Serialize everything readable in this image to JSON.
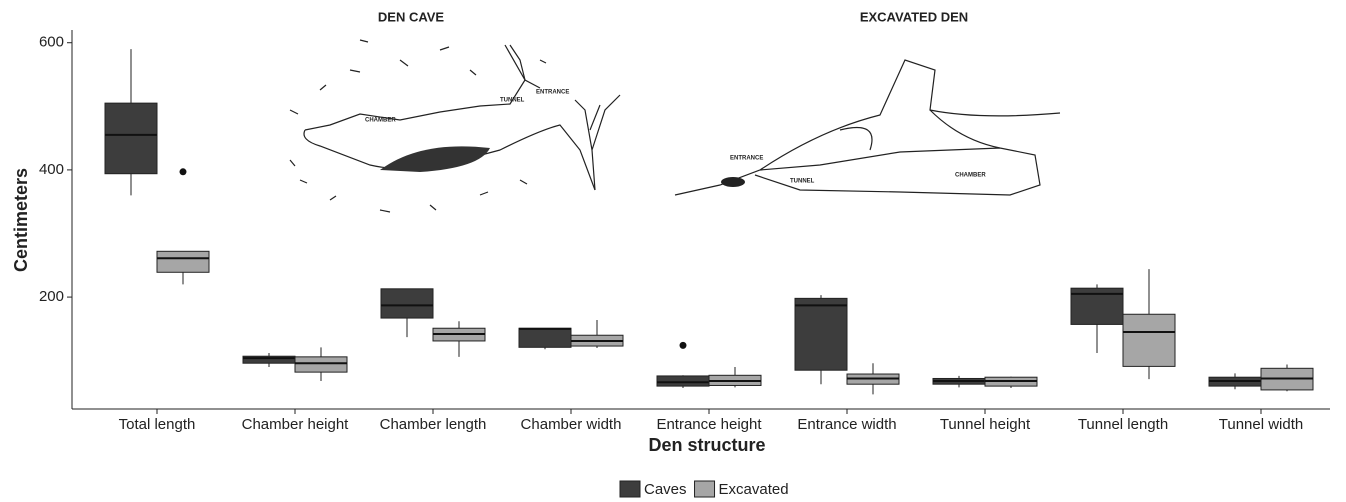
{
  "chart_data": {
    "type": "box",
    "xlabel": "Den structure",
    "ylabel": "Centimeters",
    "categories": [
      "Total length",
      "Chamber  height",
      "Chamber length",
      "Chamber  width",
      "Entrance  height",
      "Entrance width",
      "Tunnel  height",
      "Tunnel length",
      "Tunnel width"
    ],
    "series": [
      {
        "name": "Caves",
        "color": "#3d3d3d",
        "values": [
          {
            "whislo": 360,
            "q1": 394,
            "med": 455,
            "q3": 505,
            "whishi": 590
          },
          {
            "whislo": 90,
            "q1": 96,
            "med": 104,
            "q3": 107,
            "whishi": 112
          },
          {
            "whislo": 137,
            "q1": 167,
            "med": 187,
            "q3": 213,
            "whishi": 213
          },
          {
            "whislo": 118,
            "q1": 121,
            "med": 150,
            "q3": 151,
            "whishi": 151
          },
          {
            "whislo": 57,
            "q1": 60,
            "med": 66,
            "q3": 76,
            "whishi": 77,
            "fliers": [
              124
            ]
          },
          {
            "whislo": 63,
            "q1": 85,
            "med": 187,
            "q3": 198,
            "whishi": 203
          },
          {
            "whislo": 58,
            "q1": 63,
            "med": 68,
            "q3": 72,
            "whishi": 76
          },
          {
            "whislo": 112,
            "q1": 157,
            "med": 205,
            "q3": 214,
            "whishi": 220
          },
          {
            "whislo": 55,
            "q1": 60,
            "med": 68,
            "q3": 74,
            "whishi": 80
          }
        ]
      },
      {
        "name": "Excavated",
        "color": "#a6a6a6",
        "values": [
          {
            "whislo": 220,
            "q1": 239,
            "med": 261,
            "q3": 272,
            "whishi": 272,
            "fliers": [
              397
            ]
          },
          {
            "whislo": 68,
            "q1": 82,
            "med": 96,
            "q3": 106,
            "whishi": 121
          },
          {
            "whislo": 106,
            "q1": 131,
            "med": 142,
            "q3": 151,
            "whishi": 162
          },
          {
            "whislo": 120,
            "q1": 123,
            "med": 131,
            "q3": 140,
            "whishi": 164
          },
          {
            "whislo": 58,
            "q1": 61,
            "med": 68,
            "q3": 77,
            "whishi": 90
          },
          {
            "whislo": 47,
            "q1": 63,
            "med": 72,
            "q3": 79,
            "whishi": 96
          },
          {
            "whislo": 57,
            "q1": 60,
            "med": 68,
            "q3": 74,
            "whishi": 75
          },
          {
            "whislo": 71,
            "q1": 91,
            "med": 145,
            "q3": 173,
            "whishi": 244
          },
          {
            "whislo": 52,
            "q1": 54,
            "med": 72,
            "q3": 88,
            "whishi": 94
          }
        ]
      }
    ],
    "ylim": [
      24,
      620
    ],
    "yticks": [
      200,
      400,
      600
    ],
    "grid": false,
    "legend": "bottom",
    "annotations": {
      "den_cave": {
        "title": "DEN CAVE",
        "chamber": "CHAMBER",
        "tunnel": "TUNNEL",
        "entrance": "ENTRANCE"
      },
      "excavated_den": {
        "title": "EXCAVATED DEN",
        "entrance": "ENTRANCE",
        "tunnel": "TUNNEL",
        "chamber": "CHAMBER"
      }
    }
  }
}
